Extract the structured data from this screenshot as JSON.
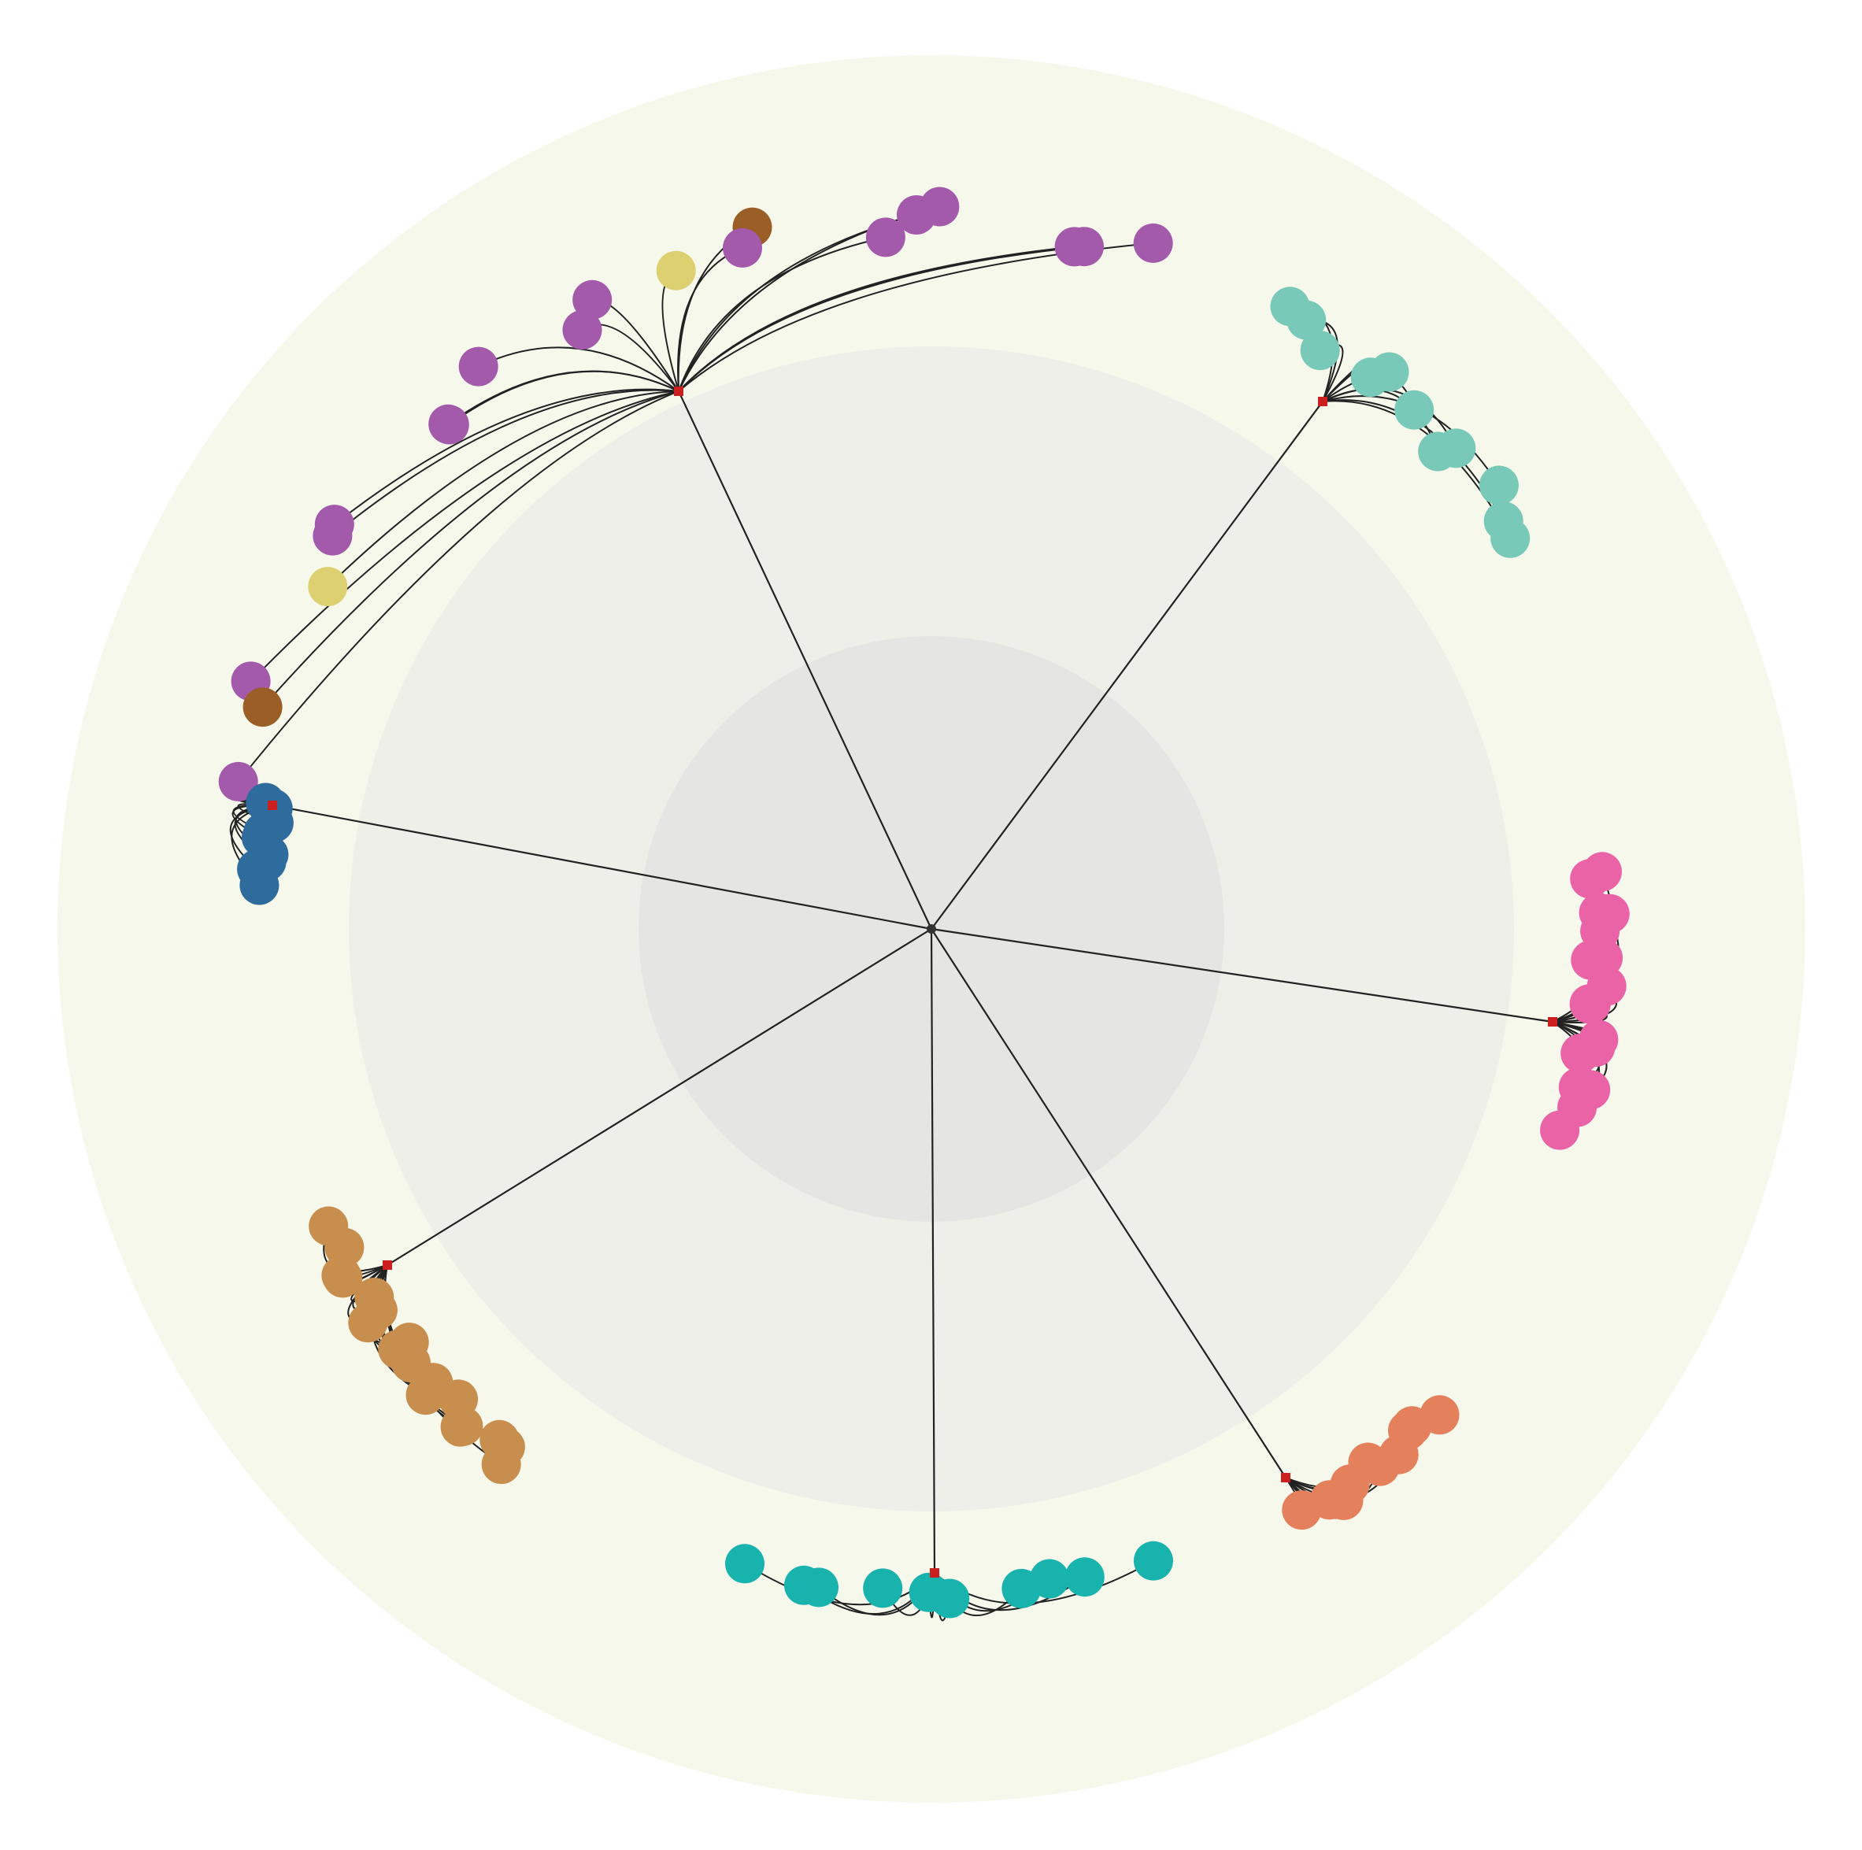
{
  "diagram": {
    "type": "radial-tree",
    "colors": {
      "background": "#ffffff",
      "ring_outer": "#f7f8ec",
      "ring_middle": "#eeefe9",
      "ring_inner": "#e5e6e4",
      "edge": "#222222",
      "hub": "#cc1f1f",
      "root": "#333333"
    },
    "root": {
      "name": "root"
    },
    "clusters": [
      {
        "id": "purple",
        "color": "#a45aab",
        "leaf_count": 20,
        "extra_colors": [
          "#9b5e27",
          "#ddd070",
          "#ddd070",
          "#9b5e27"
        ]
      },
      {
        "id": "teal",
        "color": "#78c9b8",
        "leaf_count": 11
      },
      {
        "id": "blue",
        "color": "#2e6c9e",
        "leaf_count": 9
      },
      {
        "id": "pink",
        "color": "#e963a6",
        "leaf_count": 17
      },
      {
        "id": "tan",
        "color": "#c88e4e",
        "leaf_count": 18
      },
      {
        "id": "orange",
        "color": "#e5805c",
        "leaf_count": 10
      },
      {
        "id": "cyan",
        "color": "#19b3ae",
        "leaf_count": 10
      }
    ]
  }
}
